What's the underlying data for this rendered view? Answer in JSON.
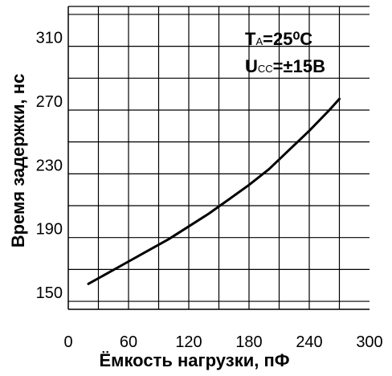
{
  "chart_data": {
    "type": "line",
    "xlabel": "Ёмкость нагрузки, пФ",
    "ylabel": "Время задержки, нс",
    "x_ticks": [
      "0",
      "60",
      "120",
      "180",
      "240",
      "300"
    ],
    "y_ticks": [
      "150",
      "190",
      "230",
      "270",
      "310"
    ],
    "xlim": [
      0,
      300
    ],
    "ylim": [
      145,
      335
    ],
    "grid": true,
    "series": [
      {
        "x": [
          20,
          40,
          60,
          80,
          100,
          120,
          140,
          160,
          180,
          200,
          220,
          240,
          260,
          270
        ],
        "y": [
          161,
          168,
          175,
          182,
          189,
          197,
          205,
          214,
          223,
          233,
          245,
          257,
          270,
          277
        ]
      }
    ],
    "annotations": [
      {
        "main": "T",
        "sub": "A",
        "rest": "=25⁰C"
      },
      {
        "main": "U",
        "sub": "CC",
        "rest": "=±15В"
      }
    ]
  }
}
